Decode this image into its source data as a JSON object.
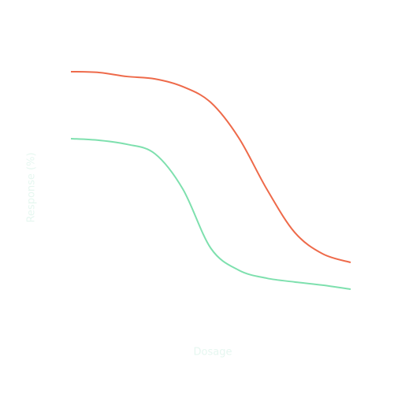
{
  "chart_data": {
    "type": "line",
    "x_label": "Dosage",
    "y_label": "Response (%)",
    "x": [
      0,
      1,
      2,
      3,
      4,
      5,
      6,
      7,
      8,
      9,
      10
    ],
    "xlim": [
      0,
      10
    ],
    "ylim": [
      0,
      100
    ],
    "series": [
      {
        "color": "#ee6a4a",
        "values": [
          90.9,
          90.6,
          89.1,
          88.2,
          85.3,
          79.4,
          66.2,
          47.1,
          30.9,
          22.9,
          19.7
        ]
      },
      {
        "color": "#7ee0ae",
        "values": [
          65.9,
          65.3,
          63.8,
          60.3,
          47.1,
          25.0,
          16.8,
          13.8,
          12.4,
          11.2,
          9.7
        ]
      }
    ]
  }
}
